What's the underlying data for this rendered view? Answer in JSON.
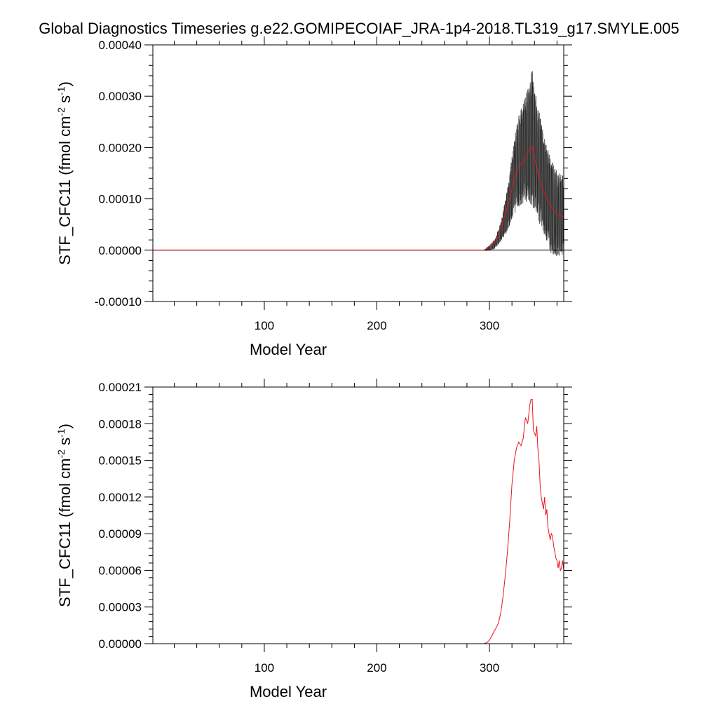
{
  "title": "Global Diagnostics Timeseries g.e22.GOMIPECOIAF_JRA-1p4-2018.TL319_g17.SMYLE.005",
  "colors": {
    "monthly": "#000000",
    "annual": "#e8141c",
    "axis": "#000000",
    "background": "#ffffff"
  },
  "chart_data": [
    {
      "type": "line",
      "xlabel": "Model Year",
      "ylabel_base": "STF_CFC11 (fmol cm",
      "ylabel_exp1": "-2",
      "ylabel_mid": " s",
      "ylabel_exp2": "-1",
      "ylabel_end": ")",
      "xlim": [
        1,
        366
      ],
      "ylim": [
        -0.0001,
        0.0004
      ],
      "x_ticks": [
        100,
        200,
        300
      ],
      "x_tick_labels": [
        "100",
        "200",
        "300"
      ],
      "y_ticks": [
        -0.0001,
        0,
        0.0001,
        0.0002,
        0.0003,
        0.0004
      ],
      "y_tick_labels": [
        "-0.00010",
        "0.00000",
        "0.00010",
        "0.00020",
        "0.00030",
        "0.00040"
      ],
      "reference_line": 0,
      "series": [
        {
          "color": "#000000",
          "kind": "monthly",
          "envelope": {
            "x": [
              295,
              300,
              305,
              310,
              315,
              320,
              325,
              330,
              335,
              338,
              340,
              345,
              350,
              355,
              360,
              366
            ],
            "low": [
              0,
              0,
              5e-06,
              2e-05,
              4e-05,
              7e-05,
              0.0001,
              0.00011,
              0.00012,
              0.00011,
              0.0001,
              7e-05,
              4e-05,
              1e-05,
              5e-06,
              5e-06
            ],
            "high": [
              0,
              8e-06,
              2e-05,
              5e-05,
              0.0001,
              0.00017,
              0.00024,
              0.00027,
              0.0003,
              0.00033,
              0.00029,
              0.00024,
              0.00019,
              0.00016,
              0.00014,
              0.00013
            ]
          }
        },
        {
          "color": "#e8141c",
          "kind": "annual",
          "x": [
            1,
            295,
            298,
            302,
            306,
            310,
            314,
            318,
            322,
            326,
            330,
            334,
            336,
            338,
            340,
            343,
            347,
            351,
            355,
            360,
            366
          ],
          "values": [
            0,
            0,
            3e-06,
            1e-05,
            2.2e-05,
            4e-05,
            7e-05,
            0.0001,
            0.00014,
            0.000165,
            0.00017,
            0.00019,
            0.0002,
            0.000202,
            0.00018,
            0.00015,
            0.00012,
            0.0001,
            8.5e-05,
            7e-05,
            6.5e-05
          ]
        }
      ]
    },
    {
      "type": "line",
      "xlabel": "Model Year",
      "ylabel_base": "STF_CFC11 (fmol cm",
      "ylabel_exp1": "-2",
      "ylabel_mid": " s",
      "ylabel_exp2": "-1",
      "ylabel_end": ")",
      "xlim": [
        1,
        366
      ],
      "ylim": [
        0,
        0.00021
      ],
      "x_ticks": [
        100,
        200,
        300
      ],
      "x_tick_labels": [
        "100",
        "200",
        "300"
      ],
      "y_ticks": [
        0,
        3e-05,
        6e-05,
        9e-05,
        0.00012,
        0.00015,
        0.00018,
        0.00021
      ],
      "y_tick_labels": [
        "0.00000",
        "0.00003",
        "0.00006",
        "0.00009",
        "0.00012",
        "0.00015",
        "0.00018",
        "0.00021"
      ],
      "series": [
        {
          "color": "#e8141c",
          "kind": "annual",
          "x": [
            1,
            295,
            298,
            300,
            302,
            304,
            306,
            308,
            310,
            312,
            314,
            316,
            318,
            320,
            322,
            324,
            326,
            328,
            330,
            332,
            334,
            336,
            337,
            338,
            339,
            340,
            341,
            342,
            343,
            344,
            345,
            346,
            347,
            348,
            349,
            350,
            351,
            352,
            353,
            354,
            355,
            356,
            357,
            358,
            359,
            360,
            361,
            362,
            363,
            364,
            365,
            366
          ],
          "values": [
            0,
            0,
            1e-06,
            3e-06,
            6e-06,
            1e-05,
            1.3e-05,
            1.7e-05,
            2.5e-05,
            3.8e-05,
            5.5e-05,
            7.5e-05,
            0.0001,
            0.00013,
            0.00015,
            0.00016,
            0.000165,
            0.000162,
            0.000168,
            0.000185,
            0.00018,
            0.000196,
            0.0002,
            0.0002,
            0.000175,
            0.000172,
            0.00017,
            0.000178,
            0.00016,
            0.00015,
            0.00013,
            0.00012,
            0.000115,
            0.00011,
            0.00012,
            0.000105,
            0.00011,
            9.5e-05,
            9e-05,
            8.5e-05,
            9e-05,
            8.8e-05,
            8e-05,
            7.5e-05,
            7e-05,
            6.8e-05,
            6.2e-05,
            6.8e-05,
            6e-05,
            6.2e-05,
            6.8e-05,
            6e-05
          ]
        }
      ]
    }
  ]
}
